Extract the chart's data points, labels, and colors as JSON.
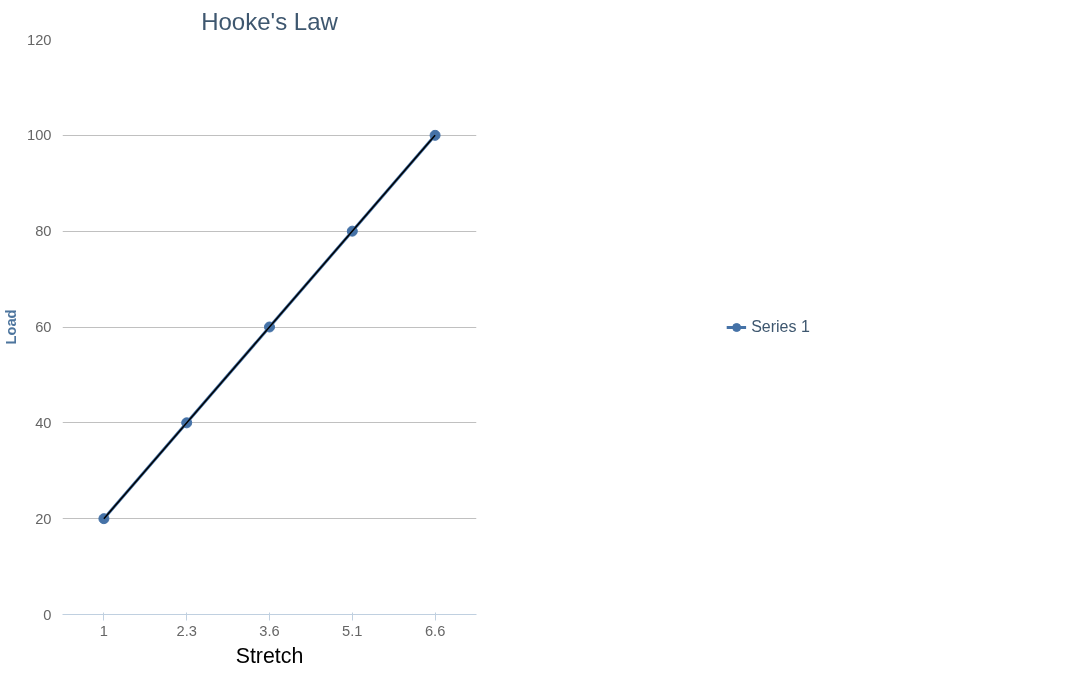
{
  "chart_data": {
    "type": "line",
    "title": "Hooke's Law",
    "xlabel": "Stretch",
    "ylabel": "Load",
    "categories": [
      "1",
      "2.3",
      "3.6",
      "5.1",
      "6.6"
    ],
    "series": [
      {
        "name": "Series 1",
        "color": "#4572a7",
        "values": [
          20,
          40,
          60,
          80,
          100
        ],
        "marker": "circle"
      },
      {
        "type": "line",
        "color": "#000000",
        "x": [
          "1",
          "6.6"
        ],
        "values": [
          20,
          100
        ],
        "marker": "none"
      }
    ],
    "ylim": [
      0,
      120
    ],
    "yticks": [
      0,
      20,
      40,
      60,
      80,
      100,
      120
    ],
    "grid": "y",
    "legend": "right",
    "line_style": "solid"
  }
}
